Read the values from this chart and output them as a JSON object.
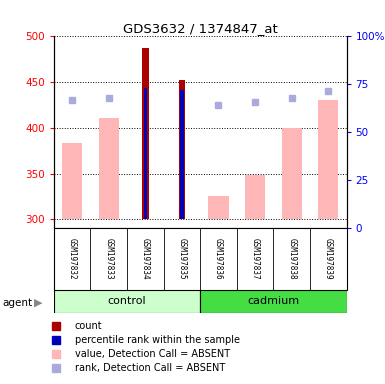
{
  "title": "GDS3632 / 1374847_at",
  "samples": [
    "GSM197832",
    "GSM197833",
    "GSM197834",
    "GSM197835",
    "GSM197836",
    "GSM197837",
    "GSM197838",
    "GSM197839"
  ],
  "ylim_left": [
    290,
    500
  ],
  "ylim_right": [
    0,
    100
  ],
  "yticks_left": [
    300,
    350,
    400,
    450,
    500
  ],
  "yticks_right": [
    0,
    25,
    50,
    75,
    100
  ],
  "count_bars": [
    0,
    0,
    487,
    452,
    0,
    0,
    0,
    0
  ],
  "rank_bars": [
    0,
    0,
    444,
    441,
    0,
    0,
    0,
    0
  ],
  "value_absent": [
    384,
    411,
    0,
    0,
    326,
    348,
    400,
    430
  ],
  "rank_absent_y": [
    430,
    433,
    0,
    0,
    425,
    428,
    433,
    440
  ],
  "count_color": "#AA0000",
  "rank_color": "#0000BB",
  "value_absent_color": "#FFB6B6",
  "rank_absent_color": "#AAAADD",
  "control_bg_light": "#CCFFCC",
  "cadmium_bg": "#44DD44",
  "sample_bg": "#CCCCCC",
  "base": 300,
  "bar_width": 0.55,
  "count_bar_width": 0.18,
  "rank_bar_width": 0.09
}
